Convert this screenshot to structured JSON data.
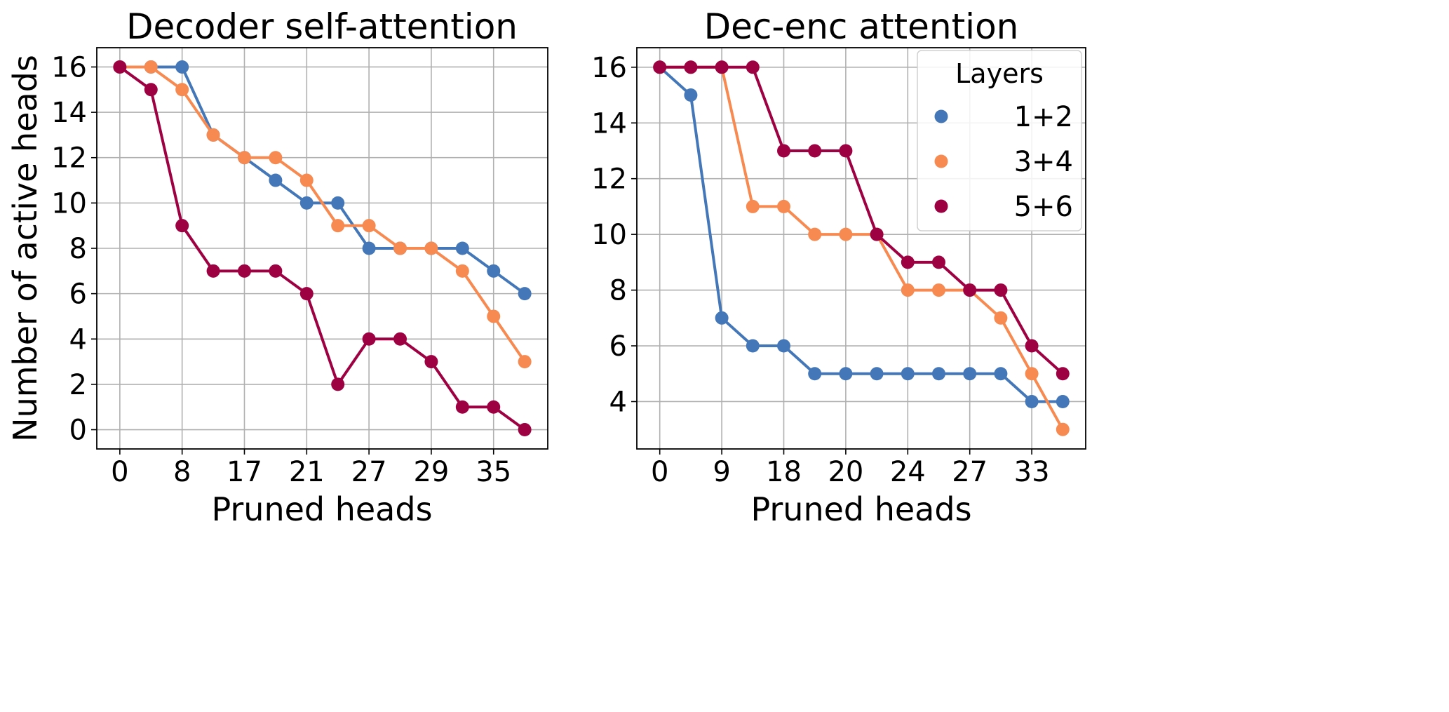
{
  "chart_data": [
    {
      "type": "line",
      "title": "Decoder self-attention",
      "xlabel": "Pruned heads",
      "ylabel": "Number of active heads",
      "x_tick_labels": [
        "0",
        "8",
        "17",
        "21",
        "27",
        "29",
        "35"
      ],
      "y_ticks": [
        0,
        2,
        4,
        6,
        8,
        10,
        12,
        14,
        16
      ],
      "ylim": [
        -0.85,
        16.85
      ],
      "grid": true,
      "series": [
        {
          "name": "1+2",
          "color": "#4477b8",
          "values": [
            16,
            16,
            16,
            13,
            12,
            11,
            10,
            10,
            8,
            8,
            8,
            8,
            7,
            6
          ]
        },
        {
          "name": "3+4",
          "color": "#f78a50",
          "values": [
            16,
            16,
            15,
            13,
            12,
            12,
            11,
            9,
            9,
            8,
            8,
            7,
            5,
            3
          ]
        },
        {
          "name": "5+6",
          "color": "#9e0142",
          "values": [
            16,
            15,
            9,
            7,
            7,
            7,
            6,
            2,
            4,
            4,
            3,
            1,
            1,
            0
          ]
        }
      ]
    },
    {
      "type": "line",
      "title": "Dec-enc attention",
      "xlabel": "Pruned heads",
      "ylabel": "",
      "x_tick_labels": [
        "0",
        "9",
        "18",
        "20",
        "24",
        "27",
        "33"
      ],
      "y_ticks": [
        4,
        6,
        8,
        10,
        12,
        14,
        16
      ],
      "ylim": [
        2.3,
        16.7
      ],
      "grid": true,
      "legend": {
        "title": "Layers",
        "placement": "top-right"
      },
      "series": [
        {
          "name": "1+2",
          "color": "#4477b8",
          "values": [
            16,
            15,
            7,
            6,
            6,
            5,
            5,
            5,
            5,
            5,
            5,
            5,
            4,
            4
          ]
        },
        {
          "name": "3+4",
          "color": "#f78a50",
          "values": [
            16,
            16,
            16,
            11,
            11,
            10,
            10,
            10,
            8,
            8,
            8,
            7,
            5,
            3
          ]
        },
        {
          "name": "5+6",
          "color": "#9e0142",
          "values": [
            16,
            16,
            16,
            16,
            13,
            13,
            13,
            10,
            9,
            9,
            8,
            8,
            6,
            5
          ]
        }
      ]
    }
  ]
}
